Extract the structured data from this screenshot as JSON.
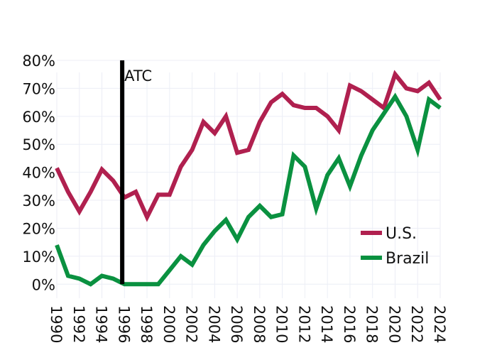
{
  "chart_data": {
    "type": "line",
    "title": "",
    "xlabel": "",
    "ylabel": "",
    "x": [
      1990,
      1991,
      1992,
      1993,
      1994,
      1995,
      1996,
      1997,
      1998,
      1999,
      2000,
      2001,
      2002,
      2003,
      2004,
      2005,
      2006,
      2007,
      2008,
      2009,
      2010,
      2011,
      2012,
      2013,
      2014,
      2015,
      2016,
      2017,
      2018,
      2019,
      2020,
      2021,
      2022,
      2023,
      2024
    ],
    "xlim": [
      1990,
      2024
    ],
    "ylim": [
      -5,
      80
    ],
    "y_ticks": [
      0,
      10,
      20,
      30,
      40,
      50,
      60,
      70,
      80
    ],
    "y_tick_labels": [
      "0%",
      "10%",
      "20%",
      "30%",
      "40%",
      "50%",
      "60%",
      "70%",
      "80%"
    ],
    "x_ticks": [
      1990,
      1992,
      1994,
      1996,
      1998,
      2000,
      2002,
      2004,
      2006,
      2008,
      2010,
      2012,
      2014,
      2016,
      2018,
      2020,
      2022,
      2024
    ],
    "x_tick_labels": [
      "1990",
      "1992",
      "1994",
      "1996",
      "1998",
      "2000",
      "2002",
      "2004",
      "2006",
      "2008",
      "2010",
      "2012",
      "2014",
      "2016",
      "2018",
      "2020",
      "2022",
      "2024"
    ],
    "grid": true,
    "legend_position": "bottom-right",
    "series": [
      {
        "name": "U.S.",
        "color": "#b0204f",
        "values": [
          41.5,
          33,
          26,
          33,
          41,
          37,
          31,
          33,
          24,
          32,
          32,
          42,
          48,
          58,
          54,
          60,
          47,
          48,
          58,
          65,
          68,
          64,
          63,
          63,
          60,
          55,
          71,
          69,
          66,
          63,
          75,
          70,
          69,
          72,
          66
        ]
      },
      {
        "name": "Brazil",
        "color": "#0a9140",
        "values": [
          14,
          3,
          2,
          0,
          3,
          2,
          0,
          0,
          0,
          0,
          5,
          10,
          7,
          14,
          19,
          23,
          16,
          24,
          28,
          24,
          25,
          46,
          42,
          27,
          39,
          45,
          35,
          46,
          55,
          61,
          67,
          60,
          48,
          66,
          63
        ]
      }
    ],
    "annotations": [
      {
        "label": "ATC",
        "x": 1995.8,
        "y_from": 0,
        "y_to": 80,
        "color": "#000000"
      }
    ]
  }
}
